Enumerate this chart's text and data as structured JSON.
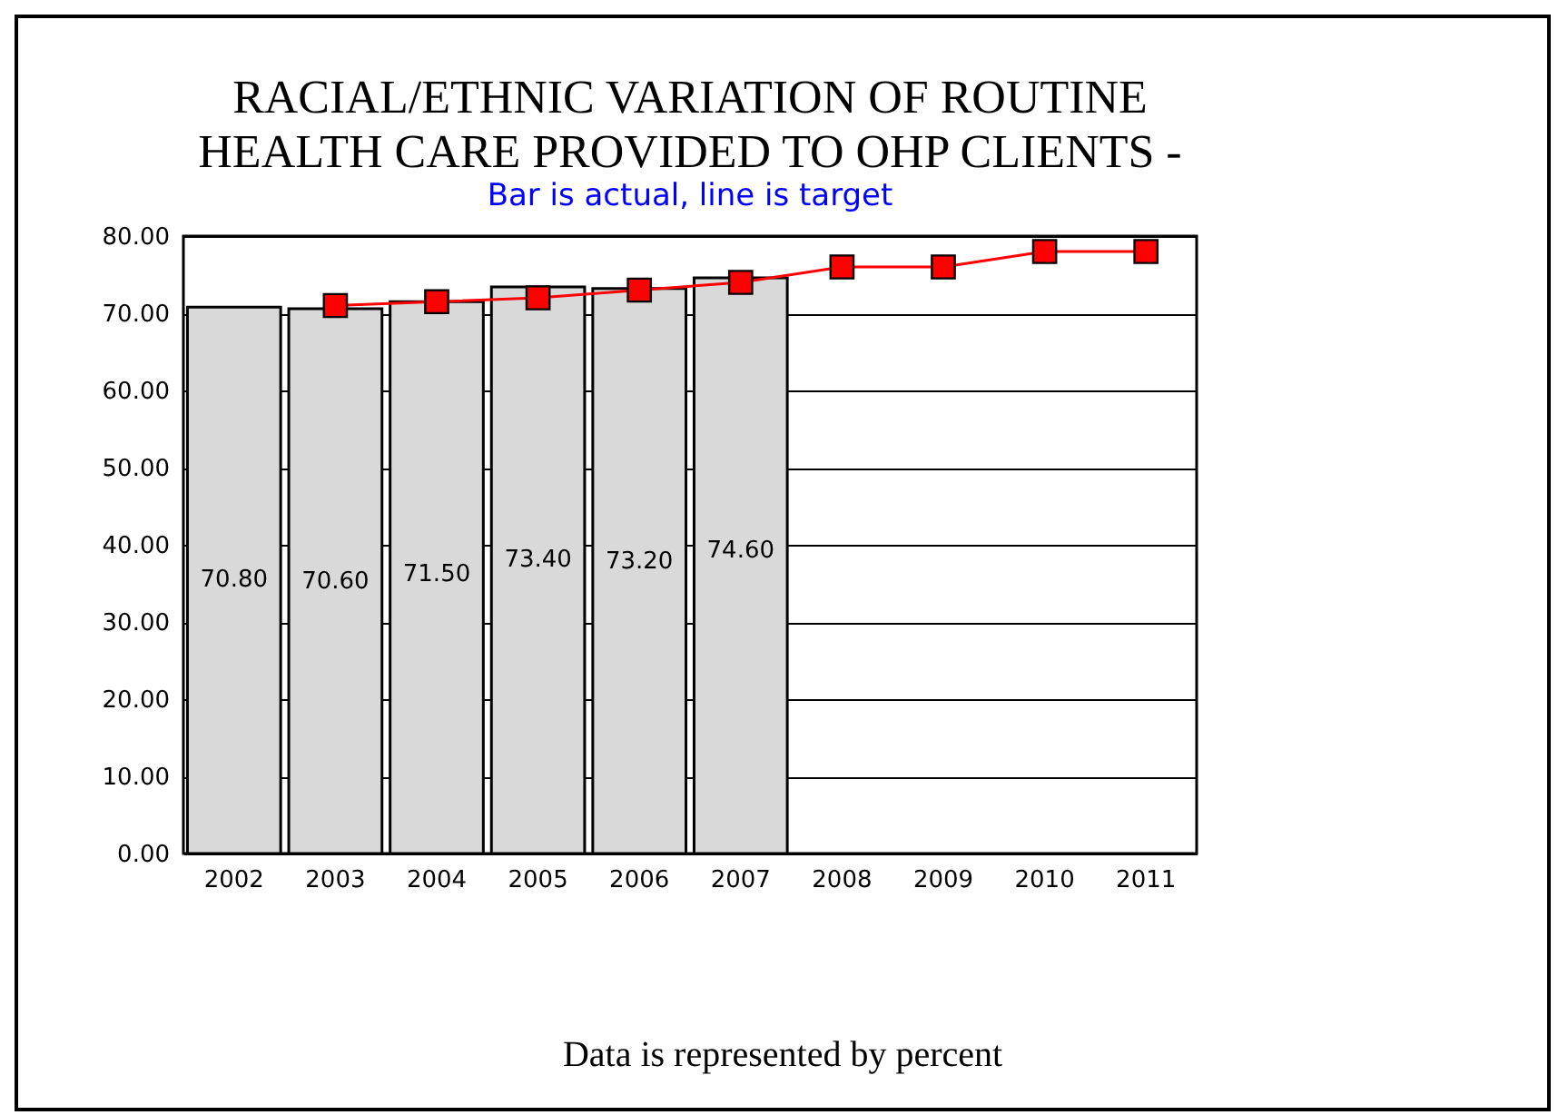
{
  "chart_data": {
    "type": "bar",
    "title": "RACIAL/ETHNIC VARIATION OF ROUTINE HEALTH CARE PROVIDED TO OHP CLIENTS -",
    "subtitle": "Bar is actual, line is target",
    "categories": [
      "2002",
      "2003",
      "2004",
      "2005",
      "2006",
      "2007",
      "2008",
      "2009",
      "2010",
      "2011"
    ],
    "series": [
      {
        "type": "bar",
        "color": "#d9d9d9",
        "values": [
          70.8,
          70.6,
          71.5,
          73.4,
          73.2,
          74.6,
          null,
          null,
          null,
          null
        ],
        "value_labels": [
          "70.80",
          "70.60",
          "71.50",
          "73.40",
          "73.20",
          "74.60",
          null,
          null,
          null,
          null
        ]
      },
      {
        "type": "line",
        "color": "#ff0000",
        "marker": "square",
        "values": [
          null,
          71,
          71.5,
          72,
          73,
          74,
          76,
          76,
          78,
          78
        ]
      }
    ],
    "ylim": [
      0,
      80
    ],
    "yticks": [
      {
        "value": 0,
        "label": "0.00"
      },
      {
        "value": 10,
        "label": "10.00"
      },
      {
        "value": 20,
        "label": "20.00"
      },
      {
        "value": 30,
        "label": "30.00"
      },
      {
        "value": 40,
        "label": "40.00"
      },
      {
        "value": 50,
        "label": "50.00"
      },
      {
        "value": 60,
        "label": "60.00"
      },
      {
        "value": 70,
        "label": "70.00"
      },
      {
        "value": 80,
        "label": "80.00"
      }
    ],
    "grid": "y",
    "legend": false,
    "annotations": [
      "Data is represented by percent"
    ]
  }
}
